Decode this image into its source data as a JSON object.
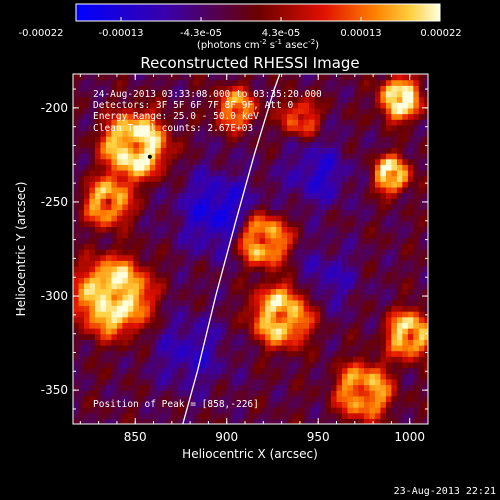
{
  "colorbar": {
    "tick_labels": [
      "-0.00022",
      "-0.00013",
      "-4.3e-05",
      "4.3e-05",
      "0.00013",
      "0.00022"
    ],
    "unit_prefix": "(photons cm",
    "unit_exp1": "-2",
    "unit_mid": " s",
    "unit_exp2": "-1",
    "unit_mid2": " asec",
    "unit_exp3": "-2",
    "unit_suffix": ")",
    "range": [
      -0.00022,
      0.00022
    ]
  },
  "info": {
    "time_range": "24-Aug-2013 03:33:08.000 to 03:35:20.000",
    "detectors": "Detectors: 3F 5F 6F 7F 8F 9F, Att 0",
    "energy": "Energy Range: 25.0 - 50.0 keV",
    "clean": "Clean     Total counts: 2.67E+03",
    "peak": "Position of Peak = [858,-226]"
  },
  "footer": {
    "date": "23-Aug-2013 22:21"
  },
  "chart_data": {
    "type": "heatmap",
    "title": "Reconstructed RHESSI Image",
    "xlabel": "Heliocentric X (arcsec)",
    "ylabel": "Heliocentric Y (arcsec)",
    "xlim": [
      816,
      1010
    ],
    "ylim": [
      -368,
      -182
    ],
    "x_ticks": [
      850,
      900,
      950,
      1000
    ],
    "y_ticks": [
      -200,
      -250,
      -300,
      -350
    ],
    "limb_points": [
      [
        876,
        -368
      ],
      [
        884,
        -340
      ],
      [
        894,
        -300
      ],
      [
        905,
        -260
      ],
      [
        915,
        -225
      ],
      [
        926,
        -190
      ],
      [
        929,
        -182
      ]
    ],
    "bright_regions": [
      {
        "x": 850,
        "y": -220,
        "sigma": 14,
        "amp": 1.0
      },
      {
        "x": 838,
        "y": -300,
        "sigma": 16,
        "amp": 1.0
      },
      {
        "x": 835,
        "y": -250,
        "sigma": 10,
        "amp": 0.8
      },
      {
        "x": 920,
        "y": -270,
        "sigma": 11,
        "amp": 0.9
      },
      {
        "x": 930,
        "y": -310,
        "sigma": 13,
        "amp": 0.9
      },
      {
        "x": 995,
        "y": -195,
        "sigma": 9,
        "amp": 1.0
      },
      {
        "x": 990,
        "y": -235,
        "sigma": 8,
        "amp": 0.9
      },
      {
        "x": 1000,
        "y": -320,
        "sigma": 10,
        "amp": 0.9
      },
      {
        "x": 975,
        "y": -350,
        "sigma": 12,
        "amp": 0.8
      },
      {
        "x": 905,
        "y": -200,
        "sigma": 9,
        "amp": 0.7
      },
      {
        "x": 940,
        "y": -205,
        "sigma": 8,
        "amp": 0.6
      }
    ],
    "dark_regions": [
      {
        "x": 895,
        "y": -255,
        "sigma": 15,
        "amp": 1.0
      },
      {
        "x": 950,
        "y": -235,
        "sigma": 12,
        "amp": 0.8
      },
      {
        "x": 880,
        "y": -330,
        "sigma": 14,
        "amp": 0.7
      },
      {
        "x": 955,
        "y": -290,
        "sigma": 12,
        "amp": 0.6
      }
    ],
    "peak": [
      858,
      -226
    ]
  }
}
